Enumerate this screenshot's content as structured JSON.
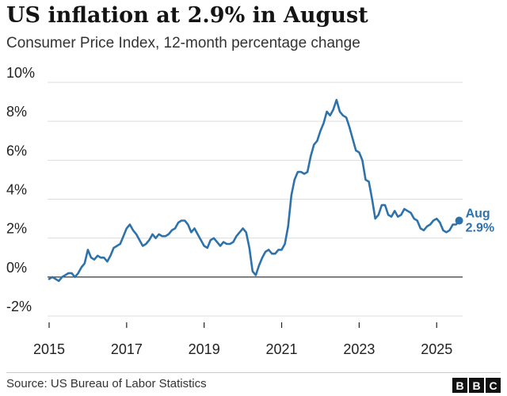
{
  "title": "US inflation at 2.9% in August",
  "subtitle": "Consumer Price Index, 12-month percentage change",
  "source": "Source: US Bureau of Labor Statistics",
  "logo": "BBC",
  "colors": {
    "line": "#2e72ac",
    "grid": "#dddddd",
    "zero_line": "#222222",
    "text": "#222222"
  },
  "chart_data": {
    "type": "line",
    "title": "US inflation at 2.9% in August",
    "subtitle": "Consumer Price Index, 12-month percentage change",
    "xlabel": "",
    "ylabel": "",
    "xlim": [
      2015.0,
      2025.67
    ],
    "ylim": [
      -2,
      10
    ],
    "grid": true,
    "x_ticks": [
      2015,
      2017,
      2019,
      2021,
      2023,
      2025
    ],
    "x_tick_labels": [
      "2015",
      "2017",
      "2019",
      "2021",
      "2023",
      "2025"
    ],
    "y_ticks": [
      -2,
      0,
      2,
      4,
      6,
      8,
      10
    ],
    "y_tick_labels": [
      "-2%",
      "0%",
      "2%",
      "4%",
      "6%",
      "8%",
      "10%"
    ],
    "annotation": {
      "month": "Aug",
      "value_label": "2.9%",
      "x": 2025.58,
      "y": 2.9
    },
    "series": [
      {
        "x_start": 2015.0,
        "x_step": 0.08333,
        "values": [
          -0.1,
          0.0,
          -0.1,
          -0.2,
          0.0,
          0.1,
          0.2,
          0.2,
          0.0,
          0.2,
          0.5,
          0.7,
          1.4,
          1.0,
          0.9,
          1.1,
          1.0,
          1.0,
          0.8,
          1.1,
          1.5,
          1.6,
          1.7,
          2.1,
          2.5,
          2.7,
          2.4,
          2.2,
          1.9,
          1.6,
          1.7,
          1.9,
          2.2,
          2.0,
          2.2,
          2.1,
          2.1,
          2.2,
          2.4,
          2.5,
          2.8,
          2.9,
          2.9,
          2.7,
          2.3,
          2.5,
          2.2,
          1.9,
          1.6,
          1.5,
          1.9,
          2.0,
          1.8,
          1.6,
          1.8,
          1.7,
          1.7,
          1.8,
          2.1,
          2.3,
          2.5,
          2.3,
          1.5,
          0.3,
          0.1,
          0.6,
          1.0,
          1.3,
          1.4,
          1.2,
          1.2,
          1.4,
          1.4,
          1.7,
          2.6,
          4.2,
          5.0,
          5.4,
          5.4,
          5.3,
          5.4,
          6.2,
          6.8,
          7.0,
          7.5,
          7.9,
          8.5,
          8.3,
          8.6,
          9.1,
          8.5,
          8.3,
          8.2,
          7.7,
          7.1,
          6.5,
          6.4,
          6.0,
          5.0,
          4.9,
          4.0,
          3.0,
          3.2,
          3.7,
          3.7,
          3.2,
          3.1,
          3.4,
          3.1,
          3.2,
          3.5,
          3.4,
          3.3,
          3.0,
          2.9,
          2.5,
          2.4,
          2.6,
          2.7,
          2.9,
          3.0,
          2.8,
          2.4,
          2.3,
          2.4,
          2.7,
          2.7,
          2.9
        ]
      }
    ]
  }
}
